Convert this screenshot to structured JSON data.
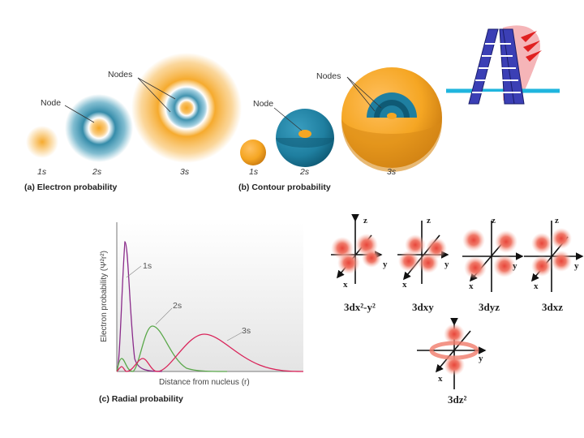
{
  "panel_a": {
    "nodes_label": "Nodes",
    "node_label": "Node",
    "orbitals": [
      "1s",
      "2s",
      "3s"
    ],
    "caption": "(a) Electron probability"
  },
  "panel_b": {
    "nodes_label": "Nodes",
    "node_label": "Node",
    "orbitals": [
      "1s",
      "2s",
      "3s"
    ],
    "caption": "(b) Contour probability"
  },
  "panel_c": {
    "ylabel": "Electron probability (Ψ²r²)",
    "xlabel": "Distance from nucleus (r)",
    "series_labels": [
      "1s",
      "2s",
      "3s"
    ],
    "caption": "(c) Radial probability",
    "colors": {
      "1s": "#8a2b8a",
      "2s": "#5aa84a",
      "3s": "#d9245a"
    }
  },
  "d_orbitals": {
    "axis_z": "z",
    "axis_y": "y",
    "axis_x": "x",
    "labels": [
      "3dx²-y²",
      "3dxy",
      "3dyz",
      "3dxz",
      "3dz²"
    ]
  },
  "colors": {
    "orange": "#f5a623",
    "teal": "#1f7fa0",
    "lobe": "#e8463a"
  },
  "logo": {
    "name": "ladder-logo"
  }
}
